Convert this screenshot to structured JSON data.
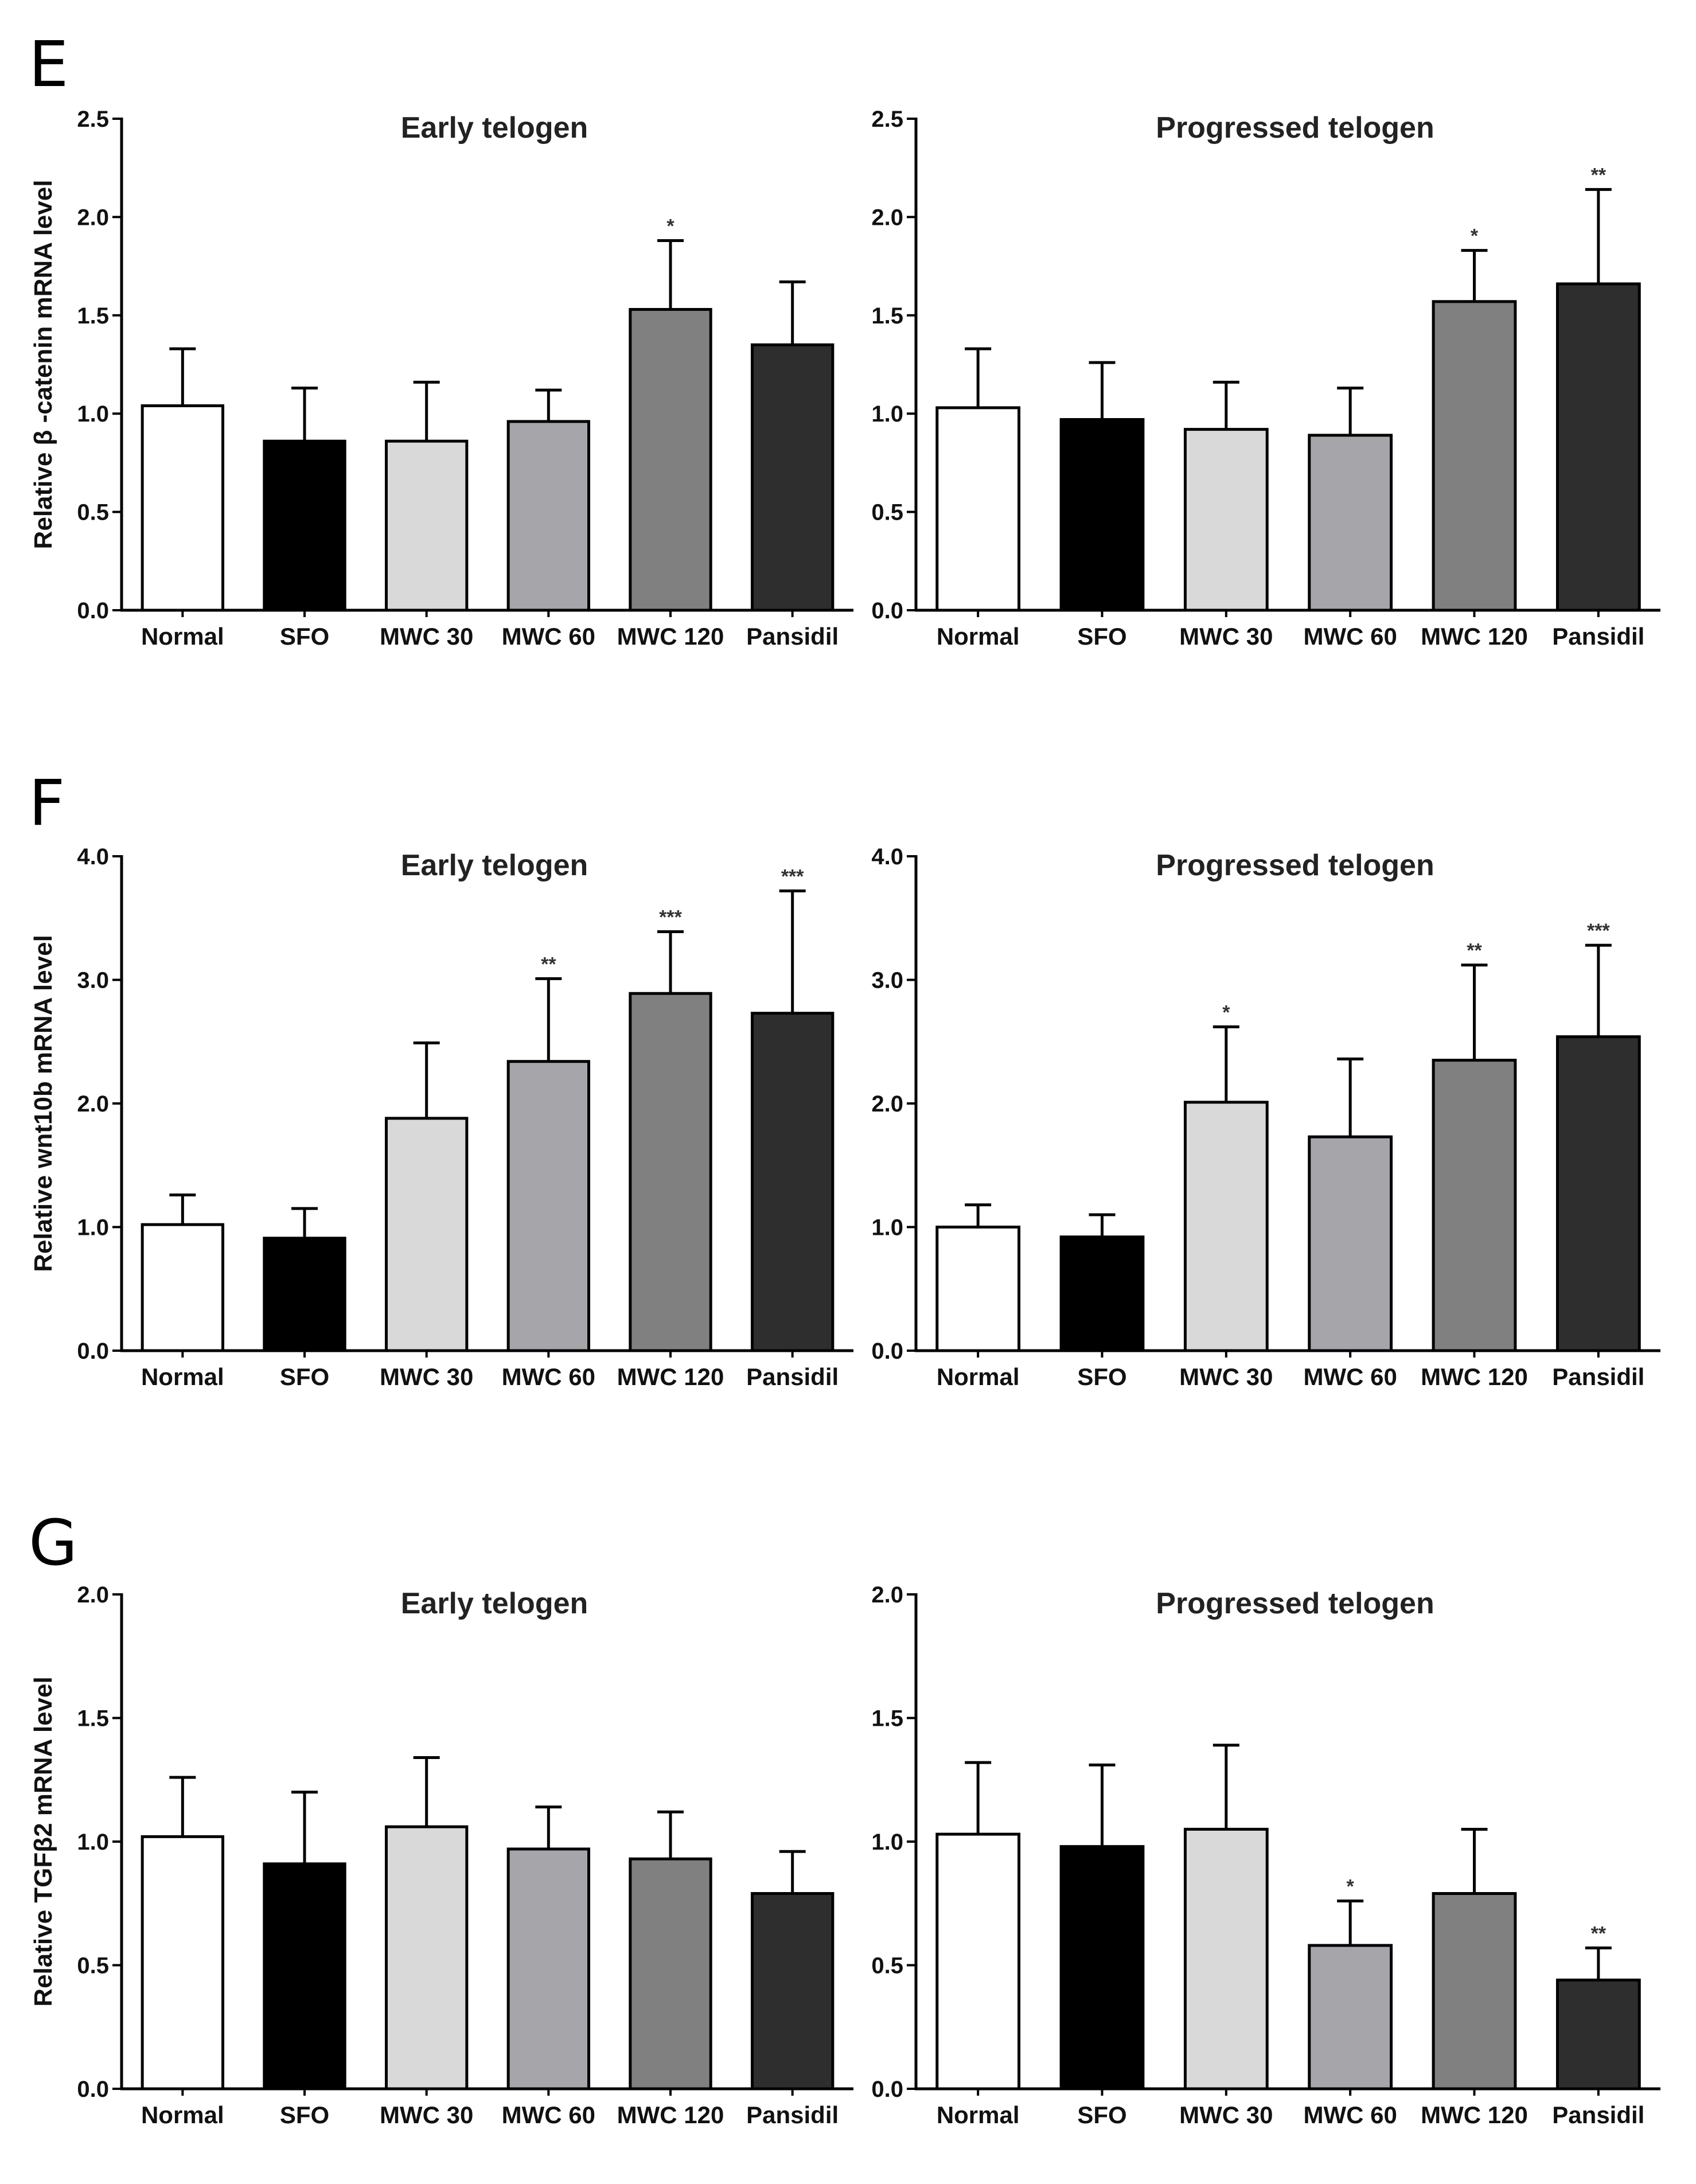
{
  "figure": {
    "categories": [
      "Normal",
      "SFO",
      "MWC 30",
      "MWC 60",
      "MWC 120",
      "Pansidil"
    ],
    "bar_colors": [
      "#ffffff",
      "#000000",
      "#d9d9d9",
      "#a6a5aa",
      "#808080",
      "#2e2e2e"
    ]
  },
  "chart_data": [
    {
      "panel": "E",
      "type": "bar",
      "title": "Early telogen",
      "ylabel": "Relative β  -catenin mRNA level",
      "ylim": [
        0,
        2.5
      ],
      "yticks": [
        "0.0",
        "0.5",
        "1.0",
        "1.5",
        "2.0",
        "2.5"
      ],
      "categories": [
        "Normal",
        "SFO",
        "MWC 30",
        "MWC 60",
        "MWC 120",
        "Pansidil"
      ],
      "values": [
        1.04,
        0.86,
        0.86,
        0.96,
        1.53,
        1.35
      ],
      "errors": [
        0.29,
        0.27,
        0.3,
        0.16,
        0.35,
        0.32
      ],
      "significance": [
        "",
        "",
        "",
        "",
        "*",
        ""
      ]
    },
    {
      "panel": "",
      "type": "bar",
      "title": "Progressed telogen",
      "ylabel": "",
      "ylim": [
        0,
        2.5
      ],
      "yticks": [
        "0.0",
        "0.5",
        "1.0",
        "1.5",
        "2.0",
        "2.5"
      ],
      "categories": [
        "Normal",
        "SFO",
        "MWC 30",
        "MWC 60",
        "MWC 120",
        "Pansidil"
      ],
      "values": [
        1.03,
        0.97,
        0.92,
        0.89,
        1.57,
        1.66
      ],
      "errors": [
        0.3,
        0.29,
        0.24,
        0.24,
        0.26,
        0.48
      ],
      "significance": [
        "",
        "",
        "",
        "",
        "*",
        "**"
      ]
    },
    {
      "panel": "F",
      "type": "bar",
      "title": "Early telogen",
      "ylabel": "Relative wnt10b mRNA level",
      "ylim": [
        0,
        4.0
      ],
      "yticks": [
        "0.0",
        "1.0",
        "2.0",
        "3.0",
        "4.0"
      ],
      "categories": [
        "Normal",
        "SFO",
        "MWC 30",
        "MWC 60",
        "MWC 120",
        "Pansidil"
      ],
      "values": [
        1.02,
        0.91,
        1.88,
        2.34,
        2.89,
        2.73
      ],
      "errors": [
        0.24,
        0.24,
        0.61,
        0.67,
        0.5,
        0.99
      ],
      "significance": [
        "",
        "",
        "",
        "**",
        "***",
        "***"
      ]
    },
    {
      "panel": "",
      "type": "bar",
      "title": "Progressed telogen",
      "ylabel": "",
      "ylim": [
        0,
        4.0
      ],
      "yticks": [
        "0.0",
        "1.0",
        "2.0",
        "3.0",
        "4.0"
      ],
      "categories": [
        "Normal",
        "SFO",
        "MWC 30",
        "MWC 60",
        "MWC 120",
        "Pansidil"
      ],
      "values": [
        1.0,
        0.92,
        2.01,
        1.73,
        2.35,
        2.54
      ],
      "errors": [
        0.18,
        0.18,
        0.61,
        0.63,
        0.77,
        0.74
      ],
      "significance": [
        "",
        "",
        "*",
        "",
        "**",
        "***"
      ]
    },
    {
      "panel": "G",
      "type": "bar",
      "title": "Early telogen",
      "ylabel": "Relative TGFβ2 mRNA level",
      "ylim": [
        0,
        2.0
      ],
      "yticks": [
        "0.0",
        "0.5",
        "1.0",
        "1.5",
        "2.0"
      ],
      "categories": [
        "Normal",
        "SFO",
        "MWC 30",
        "MWC 60",
        "MWC 120",
        "Pansidil"
      ],
      "values": [
        1.02,
        0.91,
        1.06,
        0.97,
        0.93,
        0.79
      ],
      "errors": [
        0.24,
        0.29,
        0.28,
        0.17,
        0.19,
        0.17
      ],
      "significance": [
        "",
        "",
        "",
        "",
        "",
        ""
      ]
    },
    {
      "panel": "",
      "type": "bar",
      "title": "Progressed telogen",
      "ylabel": "",
      "ylim": [
        0,
        2.0
      ],
      "yticks": [
        "0.0",
        "0.5",
        "1.0",
        "1.5",
        "2.0"
      ],
      "categories": [
        "Normal",
        "SFO",
        "MWC 30",
        "MWC 60",
        "MWC 120",
        "Pansidil"
      ],
      "values": [
        1.03,
        0.98,
        1.05,
        0.58,
        0.79,
        0.44
      ],
      "errors": [
        0.29,
        0.33,
        0.34,
        0.18,
        0.26,
        0.13
      ],
      "significance": [
        "",
        "",
        "",
        "*",
        "",
        "**"
      ]
    }
  ]
}
